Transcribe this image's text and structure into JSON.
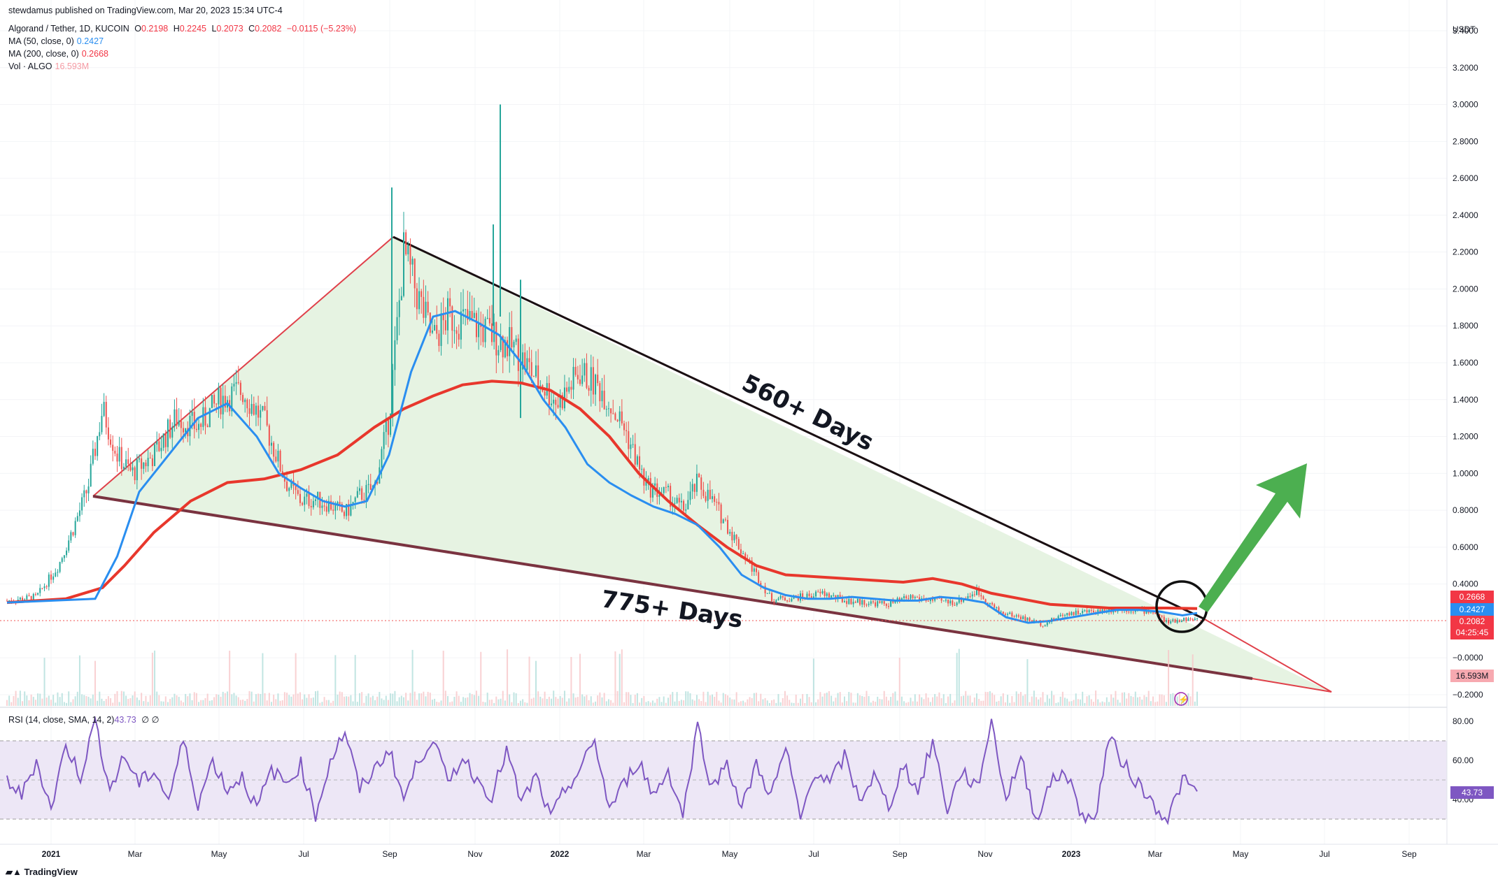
{
  "publisher_line": "stewdamus published on TradingView.com, Mar 20, 2023 15:34 UTC-4",
  "legend": {
    "symbol": "Algorand / Tether, 1D, KUCOIN",
    "o_label": "O",
    "o_value": "0.2198",
    "h_label": "H",
    "h_value": "0.2245",
    "l_label": "L",
    "l_value": "0.2073",
    "c_label": "C",
    "c_value": "0.2082",
    "change": "−0.0115 (−5.23%)",
    "ma50_label": "MA (50, close, 0)",
    "ma50_value": "0.2427",
    "ma200_label": "MA (200, close, 0)",
    "ma200_value": "0.2668",
    "vol_label": "Vol · ALGO",
    "vol_value": "16.593M",
    "rsi_label": "RSI (14, close, SMA, 14, 2)",
    "rsi_value": "43.73",
    "rsi_icons": "∅ ∅"
  },
  "currency": "USDT",
  "price_badges": {
    "ma200": "0.2668",
    "ma50": "0.2427",
    "close": "0.2082",
    "countdown": "04:25:45",
    "volume": "16.593M",
    "rsi": "43.73"
  },
  "annotations": {
    "upper": "560+ Days",
    "lower": "775+ Days"
  },
  "footer": "TradingView",
  "colors": {
    "ma50": "#2a8ef0",
    "ma200": "#e8372c",
    "up_candle": "#26a69a",
    "down_candle": "#ef5350",
    "triangle_fill": "#e6f3e2",
    "arrow": "#4caf50",
    "rsi_line": "#7e57c2",
    "rsi_band": "#ede7f6"
  },
  "chart_data": {
    "type": "candlestick",
    "title": "Algorand / Tether, 1D, KUCOIN",
    "y_axis": {
      "min": -0.2,
      "max": 3.4,
      "ticks": [
        "3.4000",
        "3.2000",
        "3.0000",
        "2.8000",
        "2.6000",
        "2.4000",
        "2.2000",
        "2.0000",
        "1.8000",
        "1.6000",
        "1.4000",
        "1.2000",
        "1.0000",
        "0.8000",
        "0.6000",
        "0.4000",
        "−0.0000",
        "−0.2000"
      ]
    },
    "x_axis": {
      "ticks": [
        "2021",
        "Mar",
        "May",
        "Jul",
        "Sep",
        "Nov",
        "2022",
        "Mar",
        "May",
        "Jul",
        "Sep",
        "Nov",
        "2023",
        "Mar",
        "May",
        "Jul",
        "Sep"
      ],
      "bold_ticks": [
        "2021",
        "2022",
        "2023"
      ]
    },
    "price_series": {
      "name": "ALGO close (approx.)",
      "t": [
        0,
        20,
        35,
        45,
        55,
        65,
        75,
        85,
        100,
        115,
        130,
        145,
        160,
        175,
        190,
        200,
        210,
        220,
        230,
        240,
        250,
        260,
        270,
        280,
        290,
        300,
        315,
        330,
        345,
        360,
        375,
        390,
        405,
        420,
        435,
        450,
        460,
        470,
        480,
        490,
        500,
        510,
        520,
        530,
        540,
        555,
        570,
        585,
        600,
        615,
        630,
        645,
        660,
        675,
        690,
        705,
        720,
        735,
        750,
        765,
        780,
        790,
        800,
        810
      ],
      "close": [
        0.31,
        0.33,
        0.5,
        0.7,
        0.92,
        1.35,
        1.1,
        1.0,
        1.1,
        1.3,
        1.25,
        1.4,
        1.45,
        1.28,
        0.95,
        0.85,
        0.86,
        0.83,
        0.78,
        0.88,
        0.92,
        1.3,
        2.2,
        1.95,
        1.72,
        1.85,
        1.82,
        1.75,
        1.68,
        1.52,
        1.38,
        1.55,
        1.45,
        1.25,
        0.93,
        0.88,
        0.8,
        0.95,
        0.85,
        0.72,
        0.58,
        0.45,
        0.32,
        0.32,
        0.33,
        0.35,
        0.31,
        0.3,
        0.29,
        0.33,
        0.31,
        0.3,
        0.36,
        0.25,
        0.22,
        0.18,
        0.24,
        0.25,
        0.26,
        0.26,
        0.25,
        0.19,
        0.21,
        0.208
      ]
    },
    "ma50_series": {
      "name": "MA (50, close, 0)",
      "t": [
        0,
        60,
        75,
        90,
        110,
        130,
        150,
        170,
        185,
        200,
        215,
        230,
        245,
        260,
        275,
        290,
        305,
        320,
        335,
        350,
        365,
        380,
        395,
        410,
        425,
        440,
        455,
        470,
        485,
        500,
        515,
        530,
        545,
        560,
        575,
        590,
        605,
        620,
        635,
        650,
        665,
        680,
        695,
        710,
        725,
        740,
        755,
        770,
        785,
        800,
        810
      ],
      "values": [
        0.3,
        0.32,
        0.55,
        0.9,
        1.1,
        1.3,
        1.38,
        1.2,
        1.0,
        0.92,
        0.85,
        0.82,
        0.85,
        1.1,
        1.55,
        1.85,
        1.88,
        1.82,
        1.75,
        1.6,
        1.4,
        1.25,
        1.05,
        0.95,
        0.88,
        0.82,
        0.78,
        0.72,
        0.6,
        0.45,
        0.38,
        0.34,
        0.32,
        0.32,
        0.33,
        0.32,
        0.31,
        0.31,
        0.33,
        0.32,
        0.3,
        0.22,
        0.19,
        0.2,
        0.22,
        0.24,
        0.26,
        0.26,
        0.25,
        0.23,
        0.2427
      ]
    },
    "ma200_series": {
      "name": "MA (200, close, 0)",
      "t": [
        0,
        40,
        65,
        80,
        100,
        125,
        150,
        175,
        200,
        225,
        250,
        270,
        290,
        310,
        330,
        350,
        370,
        390,
        410,
        430,
        450,
        470,
        490,
        510,
        530,
        550,
        570,
        590,
        610,
        630,
        650,
        670,
        690,
        710,
        730,
        750,
        770,
        790,
        810
      ],
      "values": [
        0.3,
        0.32,
        0.38,
        0.5,
        0.68,
        0.85,
        0.95,
        0.97,
        1.02,
        1.1,
        1.25,
        1.35,
        1.42,
        1.48,
        1.5,
        1.49,
        1.45,
        1.35,
        1.2,
        1.0,
        0.85,
        0.72,
        0.6,
        0.5,
        0.45,
        0.44,
        0.43,
        0.42,
        0.41,
        0.43,
        0.4,
        0.35,
        0.32,
        0.29,
        0.28,
        0.27,
        0.27,
        0.27,
        0.2668
      ]
    },
    "rsi_series": {
      "name": "RSI (14, close, SMA, 14, 2)",
      "y_ticks": [
        "80.00",
        "60.00",
        "40.00"
      ],
      "bands": [
        30,
        70
      ],
      "t": [
        0,
        10,
        20,
        30,
        40,
        50,
        60,
        70,
        80,
        90,
        100,
        110,
        120,
        130,
        140,
        150,
        160,
        170,
        180,
        190,
        200,
        210,
        220,
        230,
        240,
        250,
        260,
        270,
        280,
        290,
        300,
        310,
        320,
        330,
        340,
        350,
        360,
        370,
        380,
        390,
        400,
        410,
        420,
        430,
        440,
        450,
        460,
        470,
        480,
        490,
        500,
        510,
        520,
        530,
        540,
        550,
        560,
        570,
        580,
        590,
        600,
        610,
        620,
        630,
        640,
        650,
        660,
        670,
        680,
        690,
        700,
        710,
        720,
        730,
        740,
        750,
        760,
        770,
        780,
        790,
        800,
        810
      ],
      "values": [
        50,
        42,
        60,
        35,
        68,
        52,
        80,
        45,
        62,
        48,
        55,
        40,
        70,
        38,
        60,
        45,
        52,
        35,
        55,
        48,
        58,
        32,
        60,
        75,
        45,
        55,
        66,
        40,
        60,
        72,
        48,
        62,
        50,
        42,
        65,
        38,
        52,
        30,
        45,
        55,
        70,
        35,
        48,
        60,
        42,
        55,
        32,
        78,
        45,
        60,
        35,
        58,
        42,
        66,
        30,
        55,
        48,
        62,
        40,
        52,
        36,
        58,
        44,
        70,
        35,
        55,
        45,
        80,
        40,
        62,
        30,
        48,
        55,
        35,
        28,
        72,
        58,
        48,
        38,
        30,
        50,
        43.73
      ]
    }
  }
}
